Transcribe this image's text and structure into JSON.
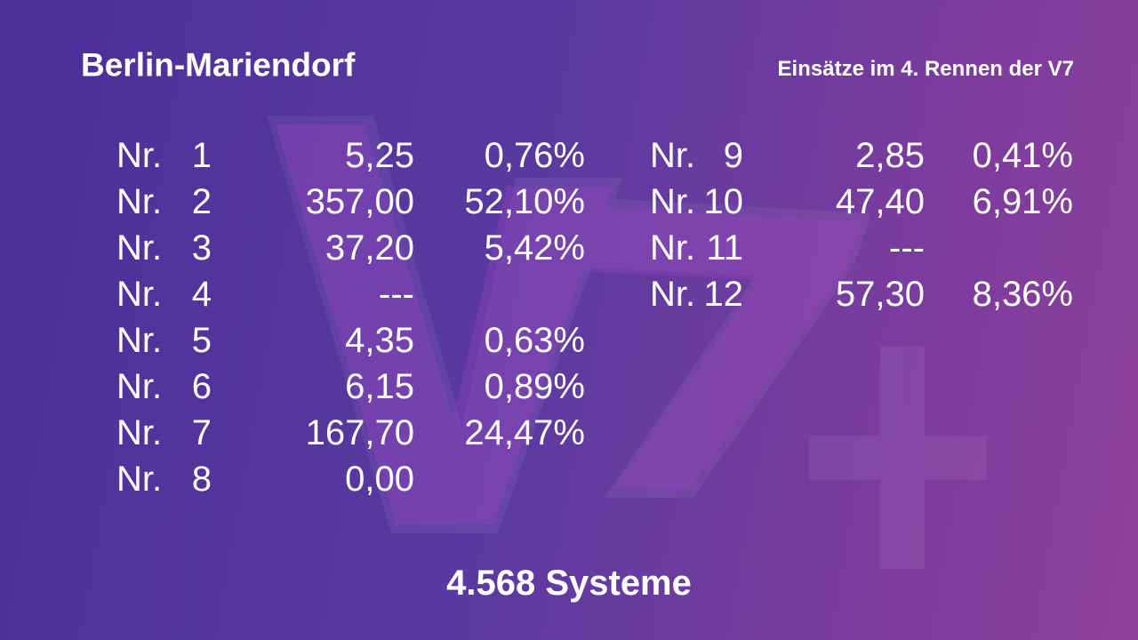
{
  "header": {
    "title": "Berlin-Mariendorf",
    "subtitle": "Einsätze im 4. Rennen der V7"
  },
  "columns": [
    {
      "rows": [
        {
          "prefix": "Nr.",
          "number": "1",
          "amount": "5,25",
          "share": "0,76%"
        },
        {
          "prefix": "Nr.",
          "number": "2",
          "amount": "357,00",
          "share": "52,10%"
        },
        {
          "prefix": "Nr.",
          "number": "3",
          "amount": "37,20",
          "share": "5,42%"
        },
        {
          "prefix": "Nr.",
          "number": "4",
          "amount": "---"
        },
        {
          "prefix": "Nr.",
          "number": "5",
          "amount": "4,35",
          "share": "0,63%"
        },
        {
          "prefix": "Nr.",
          "number": "6",
          "amount": "6,15",
          "share": "0,89%"
        },
        {
          "prefix": "Nr.",
          "number": "7",
          "amount": "167,70",
          "share": "24,47%"
        },
        {
          "prefix": "Nr.",
          "number": "8",
          "amount": "0,00"
        }
      ]
    },
    {
      "rows": [
        {
          "prefix": "Nr.",
          "number": "9",
          "amount": "2,85",
          "share": "0,41%"
        },
        {
          "prefix": "Nr.",
          "number": "10",
          "amount": "47,40",
          "share": "6,91%"
        },
        {
          "prefix": "Nr.",
          "number": "11",
          "amount": "---"
        },
        {
          "prefix": "Nr.",
          "number": "12",
          "amount": "57,30",
          "share": "8,36%"
        }
      ]
    }
  ],
  "footer": "4.568 Systeme"
}
